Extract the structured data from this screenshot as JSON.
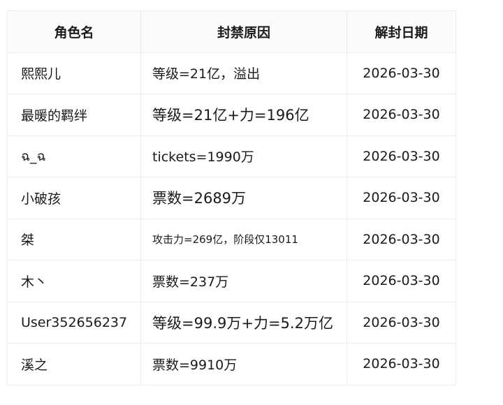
{
  "table": {
    "headers": [
      "角色名",
      "封禁原因",
      "解封日期"
    ],
    "rows": [
      {
        "name": "熙熙儿",
        "reason": "等级=21亿，溢出",
        "date": "2026-03-30"
      },
      {
        "name": "最暖的羁绊",
        "reason": "等级=21亿+力=196亿",
        "date": "2026-03-30"
      },
      {
        "name": "ฉ_ฉ",
        "reason": "tickets=1990万",
        "date": "2026-03-30"
      },
      {
        "name": "小破孩",
        "reason": "票数=2689万",
        "date": "2026-03-30"
      },
      {
        "name": "桀",
        "reason": "攻击力=269亿，阶段仅13011",
        "date": "2026-03-30"
      },
      {
        "name": "木丶",
        "reason": "票数=237万",
        "date": "2026-03-30"
      },
      {
        "name": "User352656237",
        "reason": "等级=99.9万+力=5.2万亿",
        "date": "2026-03-30"
      },
      {
        "name": "溪之",
        "reason": "票数=9910万",
        "date": "2026-03-30"
      }
    ]
  }
}
